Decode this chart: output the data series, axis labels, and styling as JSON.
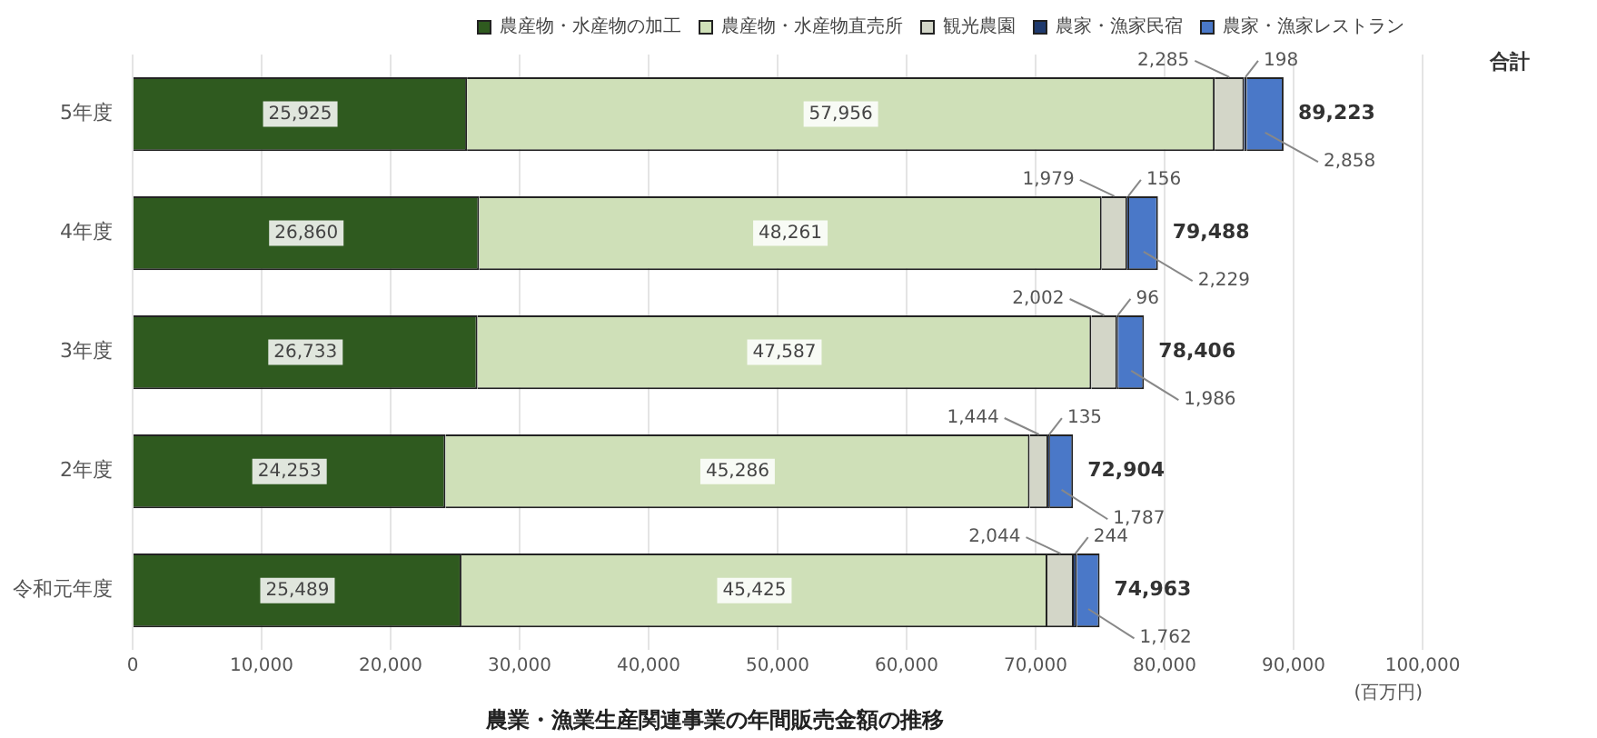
{
  "chart_data": {
    "type": "bar",
    "orientation": "horizontal",
    "stacked": true,
    "title": "農業・漁業生産関連事業の年間販売金額の推移",
    "xlabel": "(百万円)",
    "categories": [
      "5年度",
      "4年度",
      "3年度",
      "2年度",
      "令和元年度"
    ],
    "series": [
      {
        "name": "農産物・水産物の加工",
        "color": "#2f5a1f",
        "values": [
          25925,
          26860,
          26733,
          24253,
          25489
        ],
        "value_labels": [
          "25,925",
          "26,860",
          "26,733",
          "24,253",
          "25,489"
        ]
      },
      {
        "name": "農産物・水産物直売所",
        "color": "#cfe0b8",
        "values": [
          57956,
          48261,
          47587,
          45286,
          45425
        ],
        "value_labels": [
          "57,956",
          "48,261",
          "47,587",
          "45,286",
          "45,425"
        ]
      },
      {
        "name": "観光農園",
        "color": "#d3d6c8",
        "values": [
          2285,
          1979,
          2002,
          1444,
          2044
        ],
        "value_labels": [
          "2,285",
          "1,979",
          "2,002",
          "1,444",
          "2,044"
        ]
      },
      {
        "name": "農家・漁家民宿",
        "color": "#1f3a6e",
        "values": [
          198,
          156,
          96,
          135,
          244
        ],
        "value_labels": [
          "198",
          "156",
          "96",
          "135",
          "244"
        ]
      },
      {
        "name": "農家・漁家レストラン",
        "color": "#4a78c8",
        "values": [
          2858,
          2229,
          1986,
          1787,
          1762
        ],
        "value_labels": [
          "2,858",
          "2,229",
          "1,986",
          "1,787",
          "1,762"
        ]
      }
    ],
    "totals": [
      "89,223",
      "79,488",
      "78,406",
      "72,904",
      "74,963"
    ],
    "annotations": [
      "合計"
    ],
    "xlim": [
      0,
      100000
    ],
    "xticks": [
      {
        "value": 0,
        "label": "0"
      },
      {
        "value": 10000,
        "label": "10,000"
      },
      {
        "value": 20000,
        "label": "20,000"
      },
      {
        "value": 30000,
        "label": "30,000"
      },
      {
        "value": 40000,
        "label": "40,000"
      },
      {
        "value": 50000,
        "label": "50,000"
      },
      {
        "value": 60000,
        "label": "60,000"
      },
      {
        "value": 70000,
        "label": "70,000"
      },
      {
        "value": 80000,
        "label": "80,000"
      },
      {
        "value": 90000,
        "label": "90,000"
      },
      {
        "value": 100000,
        "label": "100,000"
      }
    ],
    "grid": "x",
    "legend": "top"
  }
}
